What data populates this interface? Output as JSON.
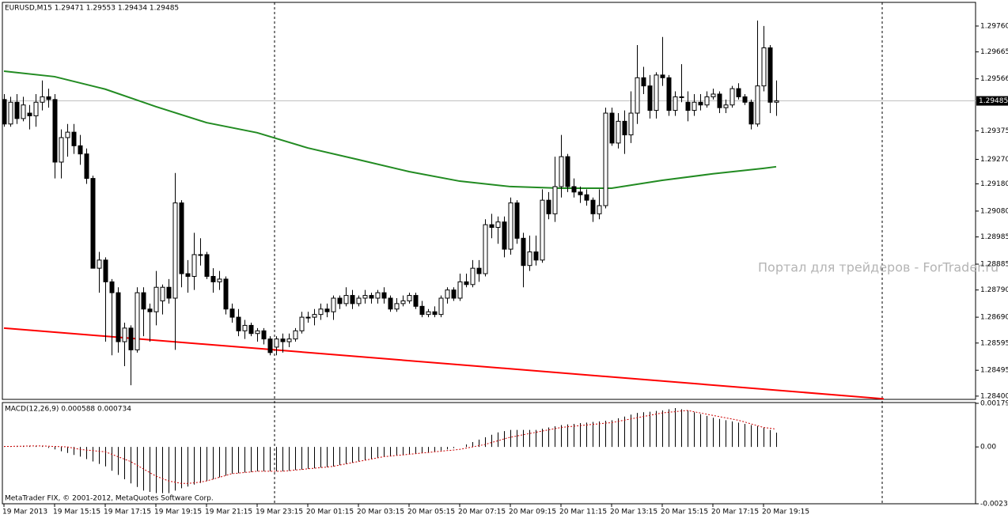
{
  "title": "EURUSD,M15  1.29471 1.29553 1.29434 1.29485",
  "watermark": "Портал для трейдеров - ForTrader.ru",
  "copyright": "MetaTrader FIX, © 2001-2012, MetaQuotes Software Corp.",
  "chart_data": [
    {
      "type": "candlestick",
      "categories": [
        "19 Mar 2013",
        null,
        null,
        null,
        null,
        null,
        null,
        null,
        "19 Mar 15:15",
        null,
        null,
        null,
        null,
        null,
        null,
        null,
        "19 Mar 17:15",
        null,
        null,
        null,
        null,
        null,
        null,
        null,
        "19 Mar 19:15",
        null,
        null,
        null,
        null,
        null,
        null,
        null,
        "19 Mar 21:15",
        null,
        null,
        null,
        null,
        null,
        null,
        null,
        "19 Mar 23:15",
        null,
        null,
        null,
        null,
        null,
        null,
        null,
        "20 Mar 01:15",
        null,
        null,
        null,
        null,
        null,
        null,
        null,
        "20 Mar 03:15",
        null,
        null,
        null,
        null,
        null,
        null,
        null,
        "20 Mar 05:15",
        null,
        null,
        null,
        null,
        null,
        null,
        null,
        "20 Mar 07:15",
        null,
        null,
        null,
        null,
        null,
        null,
        null,
        "20 Mar 09:15",
        null,
        null,
        null,
        null,
        null,
        null,
        null,
        "20 Mar 11:15",
        null,
        null,
        null,
        null,
        null,
        null,
        null,
        "20 Mar 13:15",
        null,
        null,
        null,
        null,
        null,
        null,
        null,
        "20 Mar 15:15",
        null,
        null,
        null,
        null,
        null,
        null,
        null,
        "20 Mar 17:15",
        null,
        null,
        null,
        null,
        null,
        null,
        null,
        "20 Mar 19:15",
        null,
        null
      ],
      "open": [
        1.2949,
        1.294,
        1.2948,
        1.2942,
        1.2944,
        1.2943,
        1.2948,
        1.295,
        1.2949,
        1.2926,
        1.2935,
        1.2937,
        1.2932,
        1.2929,
        1.292,
        1.2887,
        1.289,
        1.2882,
        1.2878,
        1.286,
        1.2865,
        1.2857,
        1.2878,
        1.2872,
        1.2871,
        1.2875,
        1.288,
        1.2876,
        1.2911,
        1.2885,
        1.2884,
        1.2892,
        1.2892,
        1.2884,
        1.2882,
        1.2883,
        1.2872,
        1.2869,
        1.2864,
        1.2866,
        1.2863,
        1.2864,
        1.2861,
        1.2858,
        1.2861,
        1.286,
        1.2861,
        1.2864,
        1.2869,
        1.2869,
        1.287,
        1.2872,
        1.2871,
        1.2876,
        1.2874,
        1.2877,
        1.2874,
        1.2876,
        1.2877,
        1.2876,
        1.2878,
        1.2876,
        1.2872,
        1.2874,
        1.2875,
        1.2877,
        1.2873,
        1.287,
        1.2871,
        1.287,
        1.2876,
        1.2879,
        1.2876,
        1.2882,
        1.2881,
        1.2887,
        1.2885,
        1.2903,
        1.2902,
        1.2904,
        1.2894,
        1.2911,
        1.2898,
        1.2888,
        1.2893,
        1.289,
        1.2912,
        1.2907,
        1.2917,
        1.2928,
        1.2917,
        1.2915,
        1.2914,
        1.2912,
        1.2907,
        1.291,
        1.2944,
        1.2933,
        1.2941,
        1.2936,
        1.2944,
        1.2957,
        1.2954,
        1.2945,
        1.2958,
        1.2957,
        1.2945,
        1.295,
        1.2948,
        1.2945,
        1.2948,
        1.2947,
        1.295,
        1.2951,
        1.2946,
        1.2947,
        1.2953,
        1.295,
        1.2948,
        1.294,
        1.2954,
        1.2968,
        1.2948
      ],
      "high": [
        1.2951,
        1.295,
        1.2951,
        1.295,
        1.2947,
        1.2951,
        1.2956,
        1.2953,
        1.2951,
        1.2938,
        1.294,
        1.294,
        1.2936,
        1.2931,
        1.2921,
        1.2893,
        1.2891,
        1.2883,
        1.288,
        1.2867,
        1.2866,
        1.288,
        1.288,
        1.2874,
        1.2886,
        1.2881,
        1.2883,
        1.2922,
        1.2912,
        1.289,
        1.29,
        1.2898,
        1.2893,
        1.2887,
        1.2886,
        1.2884,
        1.2874,
        1.2872,
        1.2868,
        1.2867,
        1.2865,
        1.2865,
        1.2862,
        1.2862,
        1.2863,
        1.2863,
        1.2865,
        1.2871,
        1.2871,
        1.2872,
        1.2874,
        1.2874,
        1.2877,
        1.2877,
        1.288,
        1.2879,
        1.2877,
        1.2879,
        1.2878,
        1.2879,
        1.288,
        1.2877,
        1.2876,
        1.2877,
        1.2878,
        1.2878,
        1.2875,
        1.2872,
        1.2873,
        1.2877,
        1.288,
        1.288,
        1.2885,
        1.2885,
        1.289,
        1.289,
        1.2905,
        1.2907,
        1.2906,
        1.2906,
        1.2913,
        1.2912,
        1.29,
        1.2899,
        1.2899,
        1.2916,
        1.2915,
        1.2928,
        1.2936,
        1.2929,
        1.292,
        1.2917,
        1.2916,
        1.2913,
        1.2916,
        1.2946,
        1.2946,
        1.2944,
        1.2945,
        1.2952,
        1.2969,
        1.2961,
        1.2958,
        1.2959,
        1.2972,
        1.2958,
        1.2952,
        1.2962,
        1.2952,
        1.2951,
        1.2951,
        1.2952,
        1.2953,
        1.2952,
        1.2949,
        1.2954,
        1.2955,
        1.2951,
        1.2949,
        1.2978,
        1.2976,
        1.2969,
        1.2956
      ],
      "low": [
        1.2939,
        1.2939,
        1.294,
        1.2941,
        1.2938,
        1.2939,
        1.2945,
        1.2946,
        1.292,
        1.292,
        1.2928,
        1.2929,
        1.2925,
        1.2918,
        1.2887,
        1.2878,
        1.286,
        1.2855,
        1.2856,
        1.2851,
        1.2844,
        1.2856,
        1.2862,
        1.286,
        1.2866,
        1.287,
        1.2874,
        1.2857,
        1.288,
        1.2878,
        1.2879,
        1.2888,
        1.2883,
        1.2878,
        1.2879,
        1.287,
        1.2867,
        1.2862,
        1.2861,
        1.2862,
        1.286,
        1.2859,
        1.2855,
        1.2855,
        1.2856,
        1.2858,
        1.286,
        1.2863,
        1.2867,
        1.2866,
        1.2868,
        1.2869,
        1.2868,
        1.2872,
        1.2873,
        1.2872,
        1.2873,
        1.2874,
        1.2874,
        1.2874,
        1.2874,
        1.2871,
        1.2871,
        1.2873,
        1.2874,
        1.2872,
        1.2869,
        1.2869,
        1.2869,
        1.2869,
        1.2874,
        1.2875,
        1.2875,
        1.288,
        1.288,
        1.2882,
        1.2884,
        1.2898,
        1.2896,
        1.2891,
        1.2892,
        1.2896,
        1.288,
        1.2886,
        1.2888,
        1.2889,
        1.2905,
        1.2904,
        1.2913,
        1.2915,
        1.2913,
        1.2911,
        1.291,
        1.2904,
        1.2905,
        1.2909,
        1.2932,
        1.2931,
        1.2929,
        1.2933,
        1.294,
        1.2951,
        1.2942,
        1.2942,
        1.2954,
        1.2943,
        1.2943,
        1.2948,
        1.2941,
        1.2943,
        1.2945,
        1.2946,
        1.2949,
        1.2944,
        1.2944,
        1.2946,
        1.2949,
        1.2947,
        1.2938,
        1.2939,
        1.2952,
        1.2944,
        1.2943
      ],
      "close": [
        1.294,
        1.2948,
        1.2942,
        1.2947,
        1.2943,
        1.2948,
        1.295,
        1.2949,
        1.2926,
        1.2935,
        1.2937,
        1.2932,
        1.2929,
        1.292,
        1.2887,
        1.289,
        1.2882,
        1.2878,
        1.286,
        1.2865,
        1.2857,
        1.2878,
        1.2872,
        1.2871,
        1.288,
        1.288,
        1.2876,
        1.2911,
        1.2885,
        1.2884,
        1.2892,
        1.2892,
        1.2884,
        1.2882,
        1.2883,
        1.2872,
        1.2869,
        1.2864,
        1.2866,
        1.2863,
        1.2864,
        1.2861,
        1.2856,
        1.2861,
        1.286,
        1.2861,
        1.2864,
        1.2869,
        1.2869,
        1.287,
        1.2872,
        1.2871,
        1.2876,
        1.2874,
        1.2877,
        1.2874,
        1.2876,
        1.2877,
        1.2876,
        1.2878,
        1.2876,
        1.2872,
        1.2874,
        1.2875,
        1.2877,
        1.2873,
        1.287,
        1.2871,
        1.287,
        1.2876,
        1.2879,
        1.2876,
        1.2882,
        1.2881,
        1.2887,
        1.2885,
        1.2903,
        1.2902,
        1.2904,
        1.2894,
        1.2911,
        1.2898,
        1.2888,
        1.2893,
        1.289,
        1.2912,
        1.2907,
        1.2917,
        1.2928,
        1.2917,
        1.2915,
        1.2914,
        1.2912,
        1.2907,
        1.291,
        1.2944,
        1.2933,
        1.2941,
        1.2936,
        1.2944,
        1.2957,
        1.2954,
        1.2945,
        1.2958,
        1.2957,
        1.2945,
        1.295,
        1.295,
        1.2945,
        1.2948,
        1.2947,
        1.295,
        1.2951,
        1.2946,
        1.2947,
        1.2953,
        1.295,
        1.2948,
        1.294,
        1.2954,
        1.2968,
        1.2948,
        1.29485
      ],
      "ma": {
        "color": "#228b22",
        "x": [
          0,
          8,
          16,
          24,
          32,
          40,
          48,
          56,
          64,
          72,
          80,
          88,
          96,
          104,
          112,
          120,
          122
        ],
        "values": [
          1.29594,
          1.29574,
          1.29528,
          1.29464,
          1.29405,
          1.29368,
          1.29312,
          1.29269,
          1.29225,
          1.2919,
          1.2917,
          1.29164,
          1.29164,
          1.29193,
          1.29217,
          1.29237,
          1.29243
        ]
      },
      "trendline": {
        "color": "#ff0000",
        "x": [
          0,
          139
        ],
        "values": [
          1.2865,
          1.2839
        ]
      },
      "bid": 1.29485,
      "ylim": [
        1.28388,
        1.29847
      ],
      "yticks": [
        {
          "value": 1.2976,
          "label": "1.29760"
        },
        1.29665,
        1.29566,
        1.29375,
        {
          "value": 1.2927,
          "label": "1.29270"
        },
        {
          "value": 1.2918,
          "label": "1.29180"
        },
        {
          "value": 1.2908,
          "label": "1.29080"
        },
        1.28985,
        1.28885,
        {
          "value": 1.2879,
          "label": "1.28790"
        },
        {
          "value": 1.2869,
          "label": "1.28690"
        },
        1.28595,
        1.28495,
        {
          "value": 1.284,
          "label": "1.28400"
        }
      ]
    },
    {
      "type": "macd",
      "title": "MACD(12,26,9) 0.000588 0.000734",
      "series": [
        {
          "color": "#000000",
          "values": [
            2e-05,
            3e-05,
            4e-05,
            5e-05,
            5e-05,
            5e-05,
            2e-05,
            -4e-05,
            -0.0001,
            -0.00018,
            -0.00025,
            -0.00033,
            -0.0004,
            -0.0005,
            -0.0006,
            -0.0007,
            -0.0008,
            -0.00098,
            -0.00115,
            -0.00133,
            -0.0015,
            -0.00165,
            -0.0018,
            -0.00185,
            -0.0019,
            -0.0019,
            -0.0019,
            -0.0018,
            -0.0017,
            -0.00163,
            -0.00155,
            -0.00148,
            -0.0014,
            -0.00133,
            -0.00125,
            -0.00118,
            -0.0011,
            -0.00108,
            -0.00105,
            -0.00103,
            -0.001,
            -0.001,
            -0.001,
            -0.001,
            -0.001,
            -0.00098,
            -0.00095,
            -0.00093,
            -0.0009,
            -0.00088,
            -0.00085,
            -0.00083,
            -0.0008,
            -0.00075,
            -0.0007,
            -0.00065,
            -0.0006,
            -0.00055,
            -0.0005,
            -0.00045,
            -0.0004,
            -0.00038,
            -0.00035,
            -0.00033,
            -0.0003,
            -0.00028,
            -0.00025,
            -0.00023,
            -0.0002,
            -0.00015,
            -0.0001,
            -5e-05,
            0,
            0.0001,
            0.0002,
            0.0003,
            0.0004,
            0.0005,
            0.0006,
            0.00065,
            0.0007,
            0.0007,
            0.0007,
            0.0007,
            0.0007,
            0.00075,
            0.0008,
            0.00085,
            0.0009,
            0.00093,
            0.00095,
            0.00098,
            0.001,
            0.00103,
            0.00105,
            0.00108,
            0.0011,
            0.00118,
            0.00125,
            0.00133,
            0.0014,
            0.00143,
            0.00145,
            0.00148,
            0.0015,
            0.00155,
            0.0016,
            0.00155,
            0.0015,
            0.00143,
            0.00135,
            0.00128,
            0.0012,
            0.00115,
            0.0011,
            0.00105,
            0.001,
            0.00095,
            0.0009,
            0.00085,
            0.0008,
            0.0007,
            0.000588
          ]
        },
        {
          "color": "#cc0000",
          "values": [
            2e-05,
            2e-05,
            3e-05,
            3e-05,
            4e-05,
            4e-05,
            4e-05,
            3e-05,
            2e-05,
            1e-05,
            0,
            -5e-05,
            -0.0001,
            -0.00013,
            -0.00015,
            -0.00018,
            -0.0002,
            -0.0003,
            -0.0004,
            -0.0005,
            -0.0006,
            -0.00075,
            -0.0009,
            -0.00105,
            -0.0012,
            -0.0013,
            -0.0014,
            -0.00145,
            -0.0015,
            -0.0015,
            -0.00148,
            -0.00145,
            -0.0014,
            -0.00133,
            -0.00125,
            -0.00118,
            -0.0011,
            -0.00108,
            -0.00105,
            -0.00103,
            -0.001,
            -0.001,
            -0.001,
            -0.001,
            -0.001,
            -0.00098,
            -0.00095,
            -0.00093,
            -0.0009,
            -0.00088,
            -0.00085,
            -0.00083,
            -0.0008,
            -0.00075,
            -0.0007,
            -0.00065,
            -0.0006,
            -0.00055,
            -0.0005,
            -0.00045,
            -0.0004,
            -0.00038,
            -0.00035,
            -0.00033,
            -0.0003,
            -0.00028,
            -0.00025,
            -0.00023,
            -0.0002,
            -0.00018,
            -0.00015,
            -0.00013,
            -0.0001,
            -5e-05,
            0,
            5e-05,
            0.0001,
            0.00018,
            0.00025,
            0.00033,
            0.0004,
            0.00045,
            0.0005,
            0.00055,
            0.0006,
            0.00065,
            0.0007,
            0.00075,
            0.0008,
            0.00083,
            0.00085,
            0.00088,
            0.0009,
            0.00093,
            0.00095,
            0.00098,
            0.001,
            0.00105,
            0.0011,
            0.00115,
            0.0012,
            0.00125,
            0.0013,
            0.00135,
            0.0014,
            0.00143,
            0.00145,
            0.00148,
            0.0015,
            0.00145,
            0.0014,
            0.00135,
            0.0013,
            0.00125,
            0.0012,
            0.00115,
            0.0011,
            0.00103,
            0.00095,
            0.00088,
            0.0008,
            0.00077,
            0.000734
          ]
        }
      ],
      "ylim": [
        -0.00234,
        0.001795
      ],
      "yticks": [
        0.001795,
        {
          "value": 0,
          "label": "0.00"
        },
        -0.00234
      ]
    }
  ]
}
